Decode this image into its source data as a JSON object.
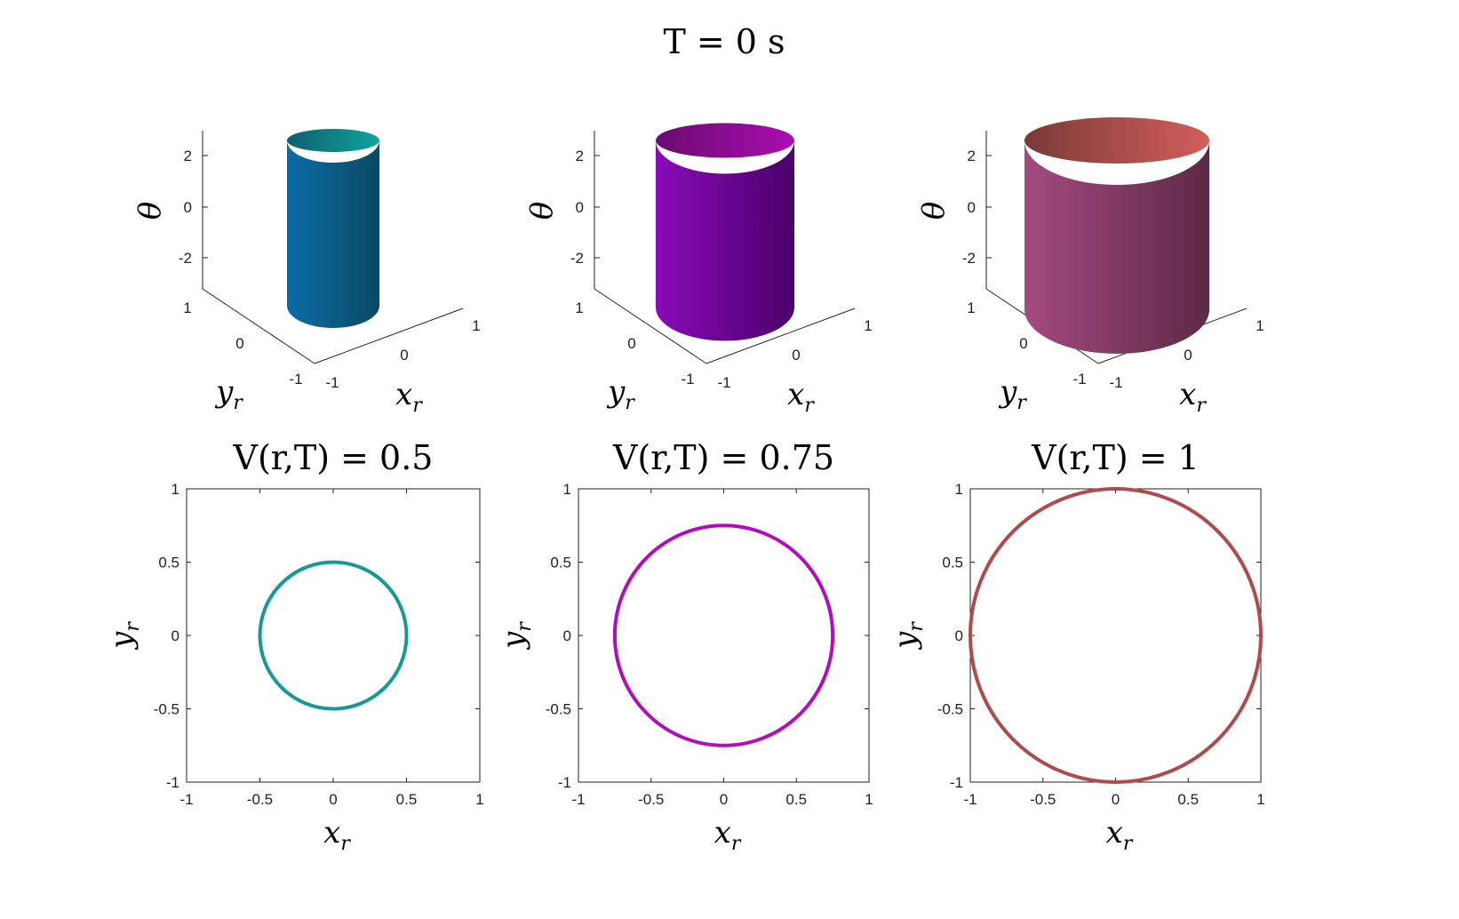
{
  "figure": {
    "title": "T = 0 s"
  },
  "chart_data": [
    {
      "type": "surface3d",
      "panel": "top-left",
      "surface": "cylinder",
      "radius": 0.5,
      "theta_range": [
        -3.1416,
        3.1416
      ],
      "color": "#0f9a94",
      "colors": {
        "left": "#0b6da8",
        "right": "#0b4862",
        "top_left": "#0d5f6f",
        "top_right": "#12a39d"
      },
      "xlabel": "x",
      "xlabel_sub": "r",
      "ylabel": "y",
      "ylabel_sub": "r",
      "zlabel": "θ",
      "x_ticks": [
        "-1",
        "0",
        "1"
      ],
      "y_ticks": [
        "-1",
        "0",
        "1"
      ],
      "z_ticks": [
        "-2",
        "0",
        "2"
      ]
    },
    {
      "type": "surface3d",
      "panel": "top-middle",
      "surface": "cylinder",
      "radius": 0.75,
      "theta_range": [
        -3.1416,
        3.1416
      ],
      "color": "#b10db7",
      "colors": {
        "left": "#8a0ab8",
        "right": "#4b006a",
        "top_left": "#6a0b70",
        "top_right": "#ab0db0"
      },
      "xlabel": "x",
      "xlabel_sub": "r",
      "ylabel": "y",
      "ylabel_sub": "r",
      "zlabel": "θ",
      "x_ticks": [
        "-1",
        "0",
        "1"
      ],
      "y_ticks": [
        "-1",
        "0",
        "1"
      ],
      "z_ticks": [
        "-2",
        "0",
        "2"
      ]
    },
    {
      "type": "surface3d",
      "panel": "top-right",
      "surface": "cylinder",
      "radius": 1,
      "theta_range": [
        -3.1416,
        3.1416
      ],
      "color": "#b14a4a",
      "colors": {
        "left": "#a44a80",
        "right": "#5c2a45",
        "top_left": "#7a3a36",
        "top_right": "#d35e5c"
      },
      "xlabel": "x",
      "xlabel_sub": "r",
      "ylabel": "y",
      "ylabel_sub": "r",
      "zlabel": "θ",
      "x_ticks": [
        "-1",
        "0",
        "1"
      ],
      "y_ticks": [
        "-1",
        "0",
        "1"
      ],
      "z_ticks": [
        "-2",
        "0",
        "2"
      ]
    },
    {
      "type": "line",
      "panel": "bottom-left",
      "title": "V(r,T) = 0.5",
      "series": [
        {
          "shape": "circle",
          "center": [
            0,
            0
          ],
          "radius": 0.5,
          "color": "#159a98"
        }
      ],
      "xlim": [
        -1,
        1
      ],
      "ylim": [
        -1,
        1
      ],
      "xlabel": "x",
      "xlabel_sub": "r",
      "ylabel": "y",
      "ylabel_sub": "r",
      "x_ticks": [
        "-1",
        "-0.5",
        "0",
        "0.5",
        "1"
      ],
      "y_ticks": [
        "1",
        "0.5",
        "0",
        "-0.5",
        "-1"
      ]
    },
    {
      "type": "line",
      "panel": "bottom-middle",
      "title": "V(r,T) = 0.75",
      "series": [
        {
          "shape": "circle",
          "center": [
            0,
            0
          ],
          "radius": 0.75,
          "color": "#b20cbd"
        }
      ],
      "xlim": [
        -1,
        1
      ],
      "ylim": [
        -1,
        1
      ],
      "xlabel": "x",
      "xlabel_sub": "r",
      "ylabel": "y",
      "ylabel_sub": "r",
      "x_ticks": [
        "-1",
        "-0.5",
        "0",
        "0.5",
        "1"
      ],
      "y_ticks": [
        "1",
        "0.5",
        "0",
        "-0.5",
        "-1"
      ]
    },
    {
      "type": "line",
      "panel": "bottom-right",
      "title": "V(r,T) = 1",
      "series": [
        {
          "shape": "circle",
          "center": [
            0,
            0
          ],
          "radius": 1,
          "color": "#b14a4a"
        }
      ],
      "xlim": [
        -1,
        1
      ],
      "ylim": [
        -1,
        1
      ],
      "xlabel": "x",
      "xlabel_sub": "r",
      "ylabel": "y",
      "ylabel_sub": "r",
      "x_ticks": [
        "-1",
        "-0.5",
        "0",
        "0.5",
        "1"
      ],
      "y_ticks": [
        "1",
        "0.5",
        "0",
        "-0.5",
        "-1"
      ]
    }
  ]
}
